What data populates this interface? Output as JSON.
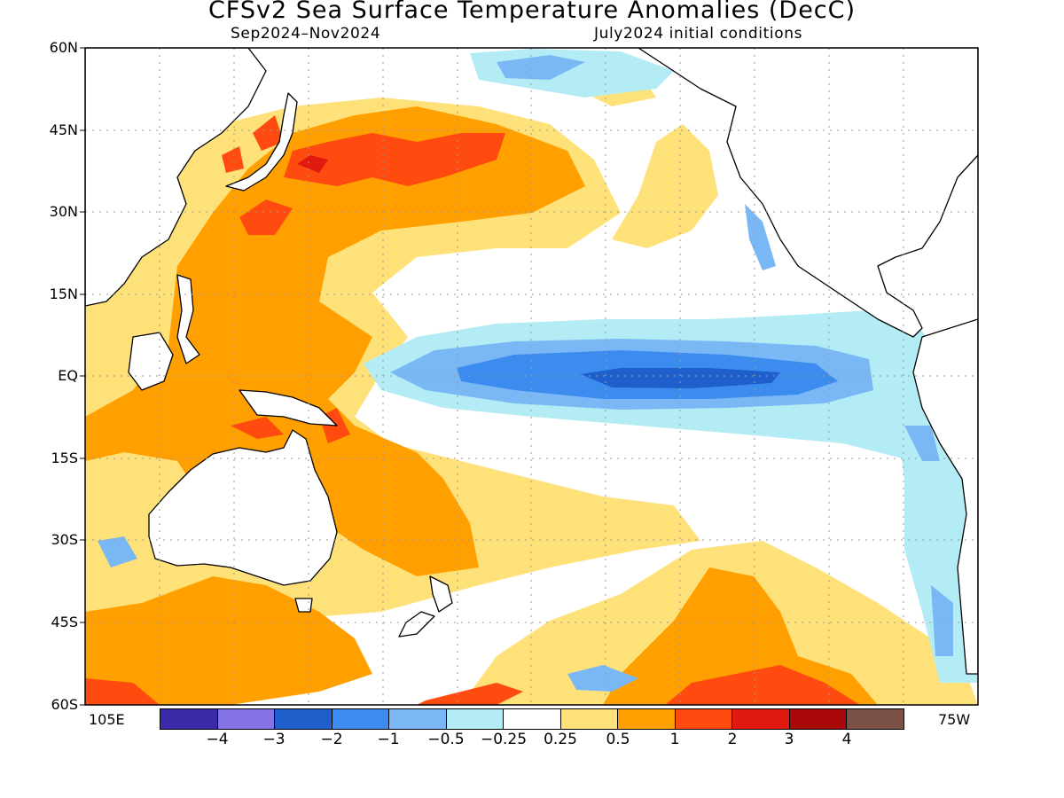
{
  "title": "CFSv2 Sea Surface Temperature Anomalies (DecC)",
  "subtitle_left": "Sep2024–Nov2024",
  "subtitle_right": "July2024 initial conditions",
  "lat_labels": [
    "60N",
    "45N",
    "30N",
    "15N",
    "EQ",
    "15S",
    "30S",
    "45S",
    "60S"
  ],
  "lon_label_left": "105E",
  "lon_label_right": "75W",
  "colorbar": {
    "colors": [
      "#3b2aa8",
      "#8473e5",
      "#1f5fcc",
      "#3c8cf0",
      "#7ab8f5",
      "#b3ecf5",
      "#ffffff",
      "#ffe17a",
      "#ffa000",
      "#ff4a10",
      "#e01a10",
      "#a80808",
      "#7d5246"
    ],
    "labels": [
      "−4",
      "−3",
      "−2",
      "−1",
      "−0.5",
      "−0.25",
      "0.25",
      "0.5",
      "1",
      "2",
      "3",
      "4"
    ]
  },
  "map": {
    "extent": {
      "lon": [
        105,
        285
      ],
      "lat": [
        -60,
        60
      ]
    },
    "grid_step_deg": 15,
    "anomaly_colors": {
      "pos_025": "#ffe17a",
      "pos_05": "#ffa000",
      "pos_1": "#ff4a10",
      "pos_2": "#e01a10",
      "neg_025": "#b3ecf5",
      "neg_05": "#7ab8f5",
      "neg_1": "#3c8cf0",
      "neg_2": "#1f5fcc"
    },
    "land_color": "#ffffff",
    "coast_color": "#000000"
  }
}
